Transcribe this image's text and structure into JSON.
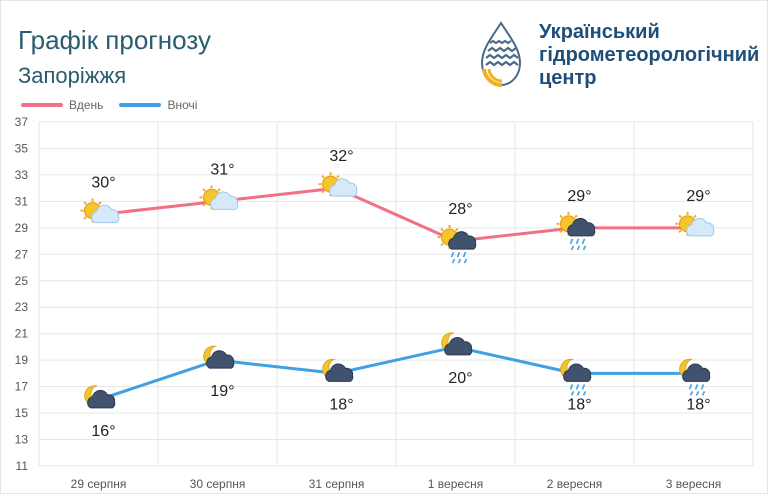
{
  "header": {
    "title": "Графік прогнозу",
    "city": "Запоріжжя"
  },
  "organization": {
    "lines": [
      "Український",
      "гідрометеорологічний",
      "центр"
    ]
  },
  "colors": {
    "day": "#f07085",
    "night": "#3fa1e3",
    "title": "#2a5b6e",
    "org": "#1f4e79",
    "logo_blue": "#4a6a8a",
    "logo_yellow": "#f2b01e"
  },
  "chart_data": {
    "type": "line",
    "categories": [
      "29 серпня",
      "30 серпня",
      "31 серпня",
      "1 вересня",
      "2 вересня",
      "3 вересня"
    ],
    "series": [
      {
        "name": "Вдень",
        "values": [
          30,
          31,
          32,
          28,
          29,
          29
        ],
        "labels": [
          "30°",
          "31°",
          "32°",
          "28°",
          "29°",
          "29°"
        ],
        "icons": [
          "sun-cloud-icon",
          "sun-cloud-icon",
          "sun-cloud-icon",
          "sun-rain-cloud-icon",
          "sun-rain-cloud-icon",
          "sun-cloud-icon"
        ]
      },
      {
        "name": "Вночі",
        "values": [
          16,
          19,
          18,
          20,
          18,
          18
        ],
        "labels": [
          "16°",
          "19°",
          "18°",
          "20°",
          "18°",
          "18°"
        ],
        "icons": [
          "moon-cloud-icon",
          "moon-cloud-icon",
          "moon-cloud-icon",
          "moon-cloud-icon",
          "moon-rain-cloud-icon",
          "moon-rain-cloud-icon"
        ]
      }
    ],
    "yticks": [
      11,
      13,
      15,
      17,
      19,
      21,
      23,
      25,
      27,
      29,
      31,
      33,
      35,
      37
    ],
    "ylim": [
      11,
      37
    ],
    "grid": true,
    "legend_position": "top-left"
  }
}
